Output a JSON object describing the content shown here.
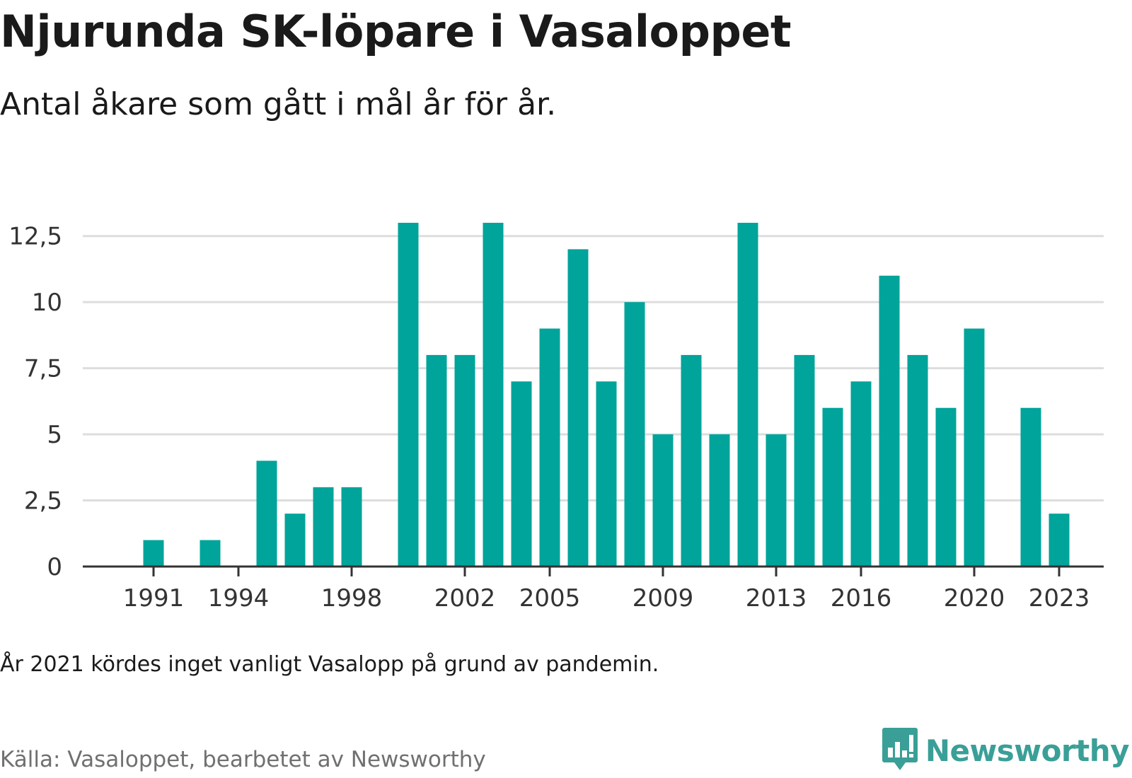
{
  "header": {
    "title": "Njurunda SK-löpare i Vasaloppet",
    "subtitle": "Antal åkare som gått i mål år för år."
  },
  "footer": {
    "note": "År 2021 kördes inget vanligt Vasalopp på grund av pandemin.",
    "source": "Källa: Vasaloppet, bearbetet av Newsworthy",
    "brand": "Newsworthy",
    "brand_icon": "newsworthy-logo-icon"
  },
  "colors": {
    "bar": "#00A49A",
    "grid": "#dddddd",
    "axis": "#333333",
    "brand": "#3a9f97"
  },
  "chart_data": {
    "type": "bar",
    "x": [
      1989,
      1990,
      1991,
      1992,
      1993,
      1994,
      1995,
      1996,
      1997,
      1998,
      1999,
      2000,
      2001,
      2002,
      2003,
      2004,
      2005,
      2006,
      2007,
      2008,
      2009,
      2010,
      2011,
      2012,
      2013,
      2014,
      2015,
      2016,
      2017,
      2018,
      2019,
      2020,
      2021,
      2022,
      2023,
      2024
    ],
    "values": [
      0,
      0,
      1,
      0,
      1,
      0,
      4,
      2,
      3,
      3,
      0,
      13,
      8,
      8,
      13,
      7,
      9,
      12,
      7,
      10,
      5,
      8,
      5,
      13,
      5,
      8,
      6,
      7,
      11,
      8,
      6,
      9,
      0,
      6,
      2,
      0
    ],
    "x_tick_labels": [
      "1991",
      "1994",
      "1998",
      "2002",
      "2005",
      "2009",
      "2013",
      "2016",
      "2020",
      "2023"
    ],
    "y_ticks": [
      0,
      2.5,
      5,
      7.5,
      10,
      12.5
    ],
    "y_tick_labels": [
      "0",
      "2,5",
      "5",
      "7,5",
      "10",
      "12,5"
    ],
    "ylim": [
      0,
      13
    ],
    "grid": true,
    "legend": "none"
  }
}
